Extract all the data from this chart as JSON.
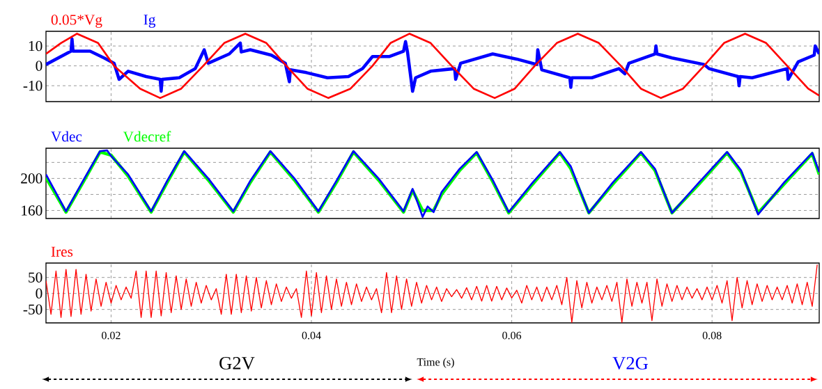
{
  "chart_data": [
    {
      "type": "line",
      "xlim": [
        0.0135,
        0.0907
      ],
      "xticks": [
        0.02,
        0.04,
        0.06,
        0.08
      ],
      "ylim": [
        -18,
        17.4
      ],
      "yticks": [
        -10,
        0,
        10
      ],
      "grid": true,
      "legend": "top left",
      "tick_labels": "y",
      "series": [
        {
          "name": "0.05*Vg",
          "color": "#ff0000",
          "x": [
            0.0135,
            0.015,
            0.0166,
            0.0187,
            0.0203,
            0.0229,
            0.0249,
            0.027,
            0.0292,
            0.0313,
            0.0334,
            0.0355,
            0.0375,
            0.0396,
            0.0417,
            0.0439,
            0.0461,
            0.0479,
            0.0498,
            0.0519,
            0.054,
            0.0562,
            0.0583,
            0.0603,
            0.0623,
            0.0645,
            0.0666,
            0.0687,
            0.0709,
            0.0729,
            0.0749,
            0.0771,
            0.0792,
            0.0812,
            0.0833,
            0.0854,
            0.0875,
            0.0896,
            0.0907
          ],
          "values": [
            6,
            11.5,
            16.2,
            11.5,
            0,
            -11.5,
            -16.2,
            -11.5,
            0,
            11.5,
            16.2,
            11.5,
            0,
            -11.5,
            -16.2,
            -11.5,
            0,
            11.5,
            16.2,
            11.5,
            0,
            -11.5,
            -16.2,
            -11.5,
            0,
            11.5,
            16.2,
            11.5,
            0,
            -11.5,
            -16.2,
            -11.5,
            0,
            11.5,
            16.2,
            11.5,
            0,
            -11.5,
            -15
          ]
        },
        {
          "name": "Ig",
          "color": "#0000ff",
          "x": [
            0.0135,
            0.016,
            0.0161,
            0.0162,
            0.0179,
            0.0193,
            0.0203,
            0.0208,
            0.0217,
            0.0235,
            0.0249,
            0.025,
            0.0251,
            0.0268,
            0.0284,
            0.0293,
            0.0297,
            0.0318,
            0.0329,
            0.033,
            0.0339,
            0.036,
            0.0374,
            0.0378,
            0.0379,
            0.0395,
            0.0416,
            0.0437,
            0.0451,
            0.0461,
            0.0478,
            0.0492,
            0.0494,
            0.0496,
            0.0501,
            0.0504,
            0.0519,
            0.0543,
            0.0544,
            0.0549,
            0.0581,
            0.0605,
            0.0625,
            0.0626,
            0.063,
            0.0658,
            0.0659,
            0.066,
            0.068,
            0.0707,
            0.0713,
            0.0717,
            0.0743,
            0.0744,
            0.0745,
            0.076,
            0.0792,
            0.0797,
            0.0826,
            0.0827,
            0.0828,
            0.084,
            0.0875,
            0.0876,
            0.0886,
            0.0902,
            0.0903,
            0.0907
          ],
          "values": [
            0.7,
            7.4,
            13.5,
            7.4,
            7.4,
            4,
            1.3,
            -6.8,
            -2.7,
            -5.4,
            -6.8,
            -12.8,
            -6.8,
            -6,
            -1.4,
            8.1,
            1.3,
            6,
            11.5,
            7,
            8.1,
            5.4,
            1.3,
            -8,
            -2,
            -3.4,
            -6,
            -5.4,
            -1.4,
            4.7,
            4.7,
            7.4,
            12.2,
            6.8,
            -12.8,
            -6,
            -2.7,
            -1.4,
            -6.8,
            1.3,
            6,
            3.4,
            0.7,
            8.1,
            -2,
            -6,
            -10.8,
            -6,
            -6,
            -1.4,
            -4,
            1.3,
            6,
            10,
            6,
            4,
            0.7,
            -1.4,
            -5.4,
            -10,
            -5.4,
            -6,
            -1.4,
            -6.8,
            2,
            5.4,
            10,
            6
          ]
        }
      ]
    },
    {
      "type": "line",
      "xlim": [
        0.0135,
        0.0907
      ],
      "xticks": [
        0.02,
        0.04,
        0.06,
        0.08
      ],
      "ylim": [
        150,
        237.7
      ],
      "yticks": [
        160,
        {
          "value": 180,
          "label": null
        },
        200,
        {
          "value": 220,
          "label": null
        }
      ],
      "grid": true,
      "legend": "top left",
      "tick_labels": "y",
      "series": [
        {
          "name": "Vdec",
          "color": "#0000ff",
          "x": [
            0.0135,
            0.0155,
            0.0172,
            0.0189,
            0.0196,
            0.02,
            0.0217,
            0.024,
            0.0256,
            0.0273,
            0.0297,
            0.0322,
            0.0339,
            0.0359,
            0.0383,
            0.0407,
            0.0425,
            0.0442,
            0.0467,
            0.0492,
            0.0501,
            0.0506,
            0.0511,
            0.0516,
            0.0522,
            0.053,
            0.0548,
            0.0565,
            0.0581,
            0.0597,
            0.0621,
            0.0648,
            0.0659,
            0.0677,
            0.0701,
            0.0729,
            0.0743,
            0.076,
            0.0787,
            0.0815,
            0.0829,
            0.0846,
            0.0872,
            0.09,
            0.0907
          ],
          "values": [
            205,
            159,
            197,
            234,
            235,
            228,
            205,
            159,
            197,
            234,
            200,
            159,
            197,
            234,
            200,
            159,
            197,
            234,
            200,
            159,
            187,
            170,
            152,
            165,
            158,
            183,
            212,
            233,
            198,
            158,
            195,
            233,
            215,
            157,
            195,
            233,
            212,
            157,
            195,
            233,
            210,
            155,
            195,
            232,
            208
          ]
        },
        {
          "name": "Vdecref",
          "color": "#00ff00",
          "x": [
            0.0135,
            0.0155,
            0.0172,
            0.0189,
            0.02,
            0.0217,
            0.024,
            0.0256,
            0.0273,
            0.0297,
            0.0322,
            0.0339,
            0.0359,
            0.0383,
            0.0407,
            0.0425,
            0.0442,
            0.0467,
            0.0492,
            0.0501,
            0.0511,
            0.0522,
            0.053,
            0.0548,
            0.0565,
            0.0581,
            0.0597,
            0.0621,
            0.0648,
            0.0659,
            0.0677,
            0.0701,
            0.0729,
            0.0743,
            0.076,
            0.0787,
            0.0815,
            0.0829,
            0.0846,
            0.0872,
            0.09,
            0.0907
          ],
          "values": [
            201,
            158,
            195,
            233,
            229,
            203,
            158,
            195,
            233,
            198,
            158,
            195,
            233,
            198,
            158,
            195,
            233,
            198,
            158,
            185,
            160,
            160,
            180,
            210,
            232,
            196,
            157,
            193,
            232,
            212,
            157,
            193,
            232,
            210,
            157,
            193,
            232,
            208,
            157,
            193,
            231,
            205
          ]
        }
      ]
    },
    {
      "type": "line",
      "xlim": [
        0.0135,
        0.0907
      ],
      "xticks": [
        0.02,
        0.04,
        0.06,
        0.08
      ],
      "ylim": [
        -92,
        95
      ],
      "yticks": [
        -50,
        0,
        50
      ],
      "grid": true,
      "legend": "top left",
      "xlabel": "Time (s)",
      "annotations": [
        "G2V",
        "V2G"
      ],
      "series": [
        {
          "name": "Ires",
          "color": "#ff0000",
          "x": [
            0.0135,
            0.014,
            0.0145,
            0.015,
            0.0155,
            0.016,
            0.0165,
            0.017,
            0.0175,
            0.018,
            0.0185,
            0.019,
            0.0195,
            0.02,
            0.0205,
            0.021,
            0.0215,
            0.022,
            0.0225,
            0.023,
            0.0235,
            0.024,
            0.0245,
            0.025,
            0.0255,
            0.026,
            0.0265,
            0.027,
            0.0275,
            0.028,
            0.0285,
            0.029,
            0.0295,
            0.03,
            0.0305,
            0.031,
            0.0315,
            0.032,
            0.0325,
            0.033,
            0.0335,
            0.034,
            0.0345,
            0.035,
            0.0355,
            0.036,
            0.0365,
            0.037,
            0.0375,
            0.038,
            0.0385,
            0.039,
            0.0395,
            0.04,
            0.0405,
            0.041,
            0.0415,
            0.042,
            0.0425,
            0.043,
            0.0435,
            0.044,
            0.0445,
            0.045,
            0.0455,
            0.046,
            0.0465,
            0.047,
            0.0475,
            0.048,
            0.0485,
            0.049,
            0.0495,
            0.05,
            0.0505,
            0.051,
            0.0515,
            0.052,
            0.0525,
            0.053,
            0.0535,
            0.054,
            0.0545,
            0.055,
            0.0555,
            0.056,
            0.0565,
            0.057,
            0.0575,
            0.058,
            0.0585,
            0.059,
            0.0595,
            0.06,
            0.0605,
            0.061,
            0.0615,
            0.062,
            0.0625,
            0.063,
            0.0635,
            0.064,
            0.0645,
            0.065,
            0.0655,
            0.066,
            0.0665,
            0.067,
            0.0675,
            0.068,
            0.0685,
            0.069,
            0.0695,
            0.07,
            0.0705,
            0.071,
            0.0715,
            0.072,
            0.0725,
            0.073,
            0.0735,
            0.074,
            0.0745,
            0.075,
            0.0755,
            0.076,
            0.0765,
            0.077,
            0.0775,
            0.078,
            0.0785,
            0.079,
            0.0795,
            0.08,
            0.0805,
            0.081,
            0.0815,
            0.082,
            0.0825,
            0.083,
            0.0835,
            0.084,
            0.0845,
            0.085,
            0.0855,
            0.086,
            0.0865,
            0.087,
            0.0875,
            0.088,
            0.0885,
            0.089,
            0.0895,
            0.09,
            0.0905
          ],
          "values": [
            40,
            -65,
            70,
            -75,
            75,
            -72,
            75,
            -65,
            60,
            -55,
            45,
            -40,
            35,
            -30,
            25,
            -20,
            20,
            -15,
            70,
            -75,
            70,
            -75,
            70,
            -70,
            65,
            -60,
            55,
            -50,
            45,
            -40,
            35,
            -30,
            25,
            -20,
            15,
            -65,
            60,
            -65,
            60,
            -60,
            55,
            -55,
            50,
            -45,
            40,
            -35,
            30,
            -25,
            20,
            -15,
            15,
            -75,
            70,
            -70,
            65,
            -60,
            55,
            -50,
            45,
            -40,
            35,
            -35,
            30,
            -25,
            20,
            -20,
            15,
            -60,
            65,
            -60,
            55,
            -50,
            45,
            -40,
            35,
            -30,
            25,
            -20,
            20,
            -25,
            15,
            -10,
            12,
            -15,
            18,
            -20,
            22,
            -24,
            25,
            -24,
            22,
            -20,
            17,
            -14,
            10,
            -30,
            25,
            -20,
            20,
            -25,
            20,
            -20,
            25,
            -35,
            50,
            -90,
            40,
            -45,
            35,
            -30,
            20,
            -20,
            25,
            -25,
            35,
            -90,
            45,
            -40,
            35,
            -30,
            35,
            -85,
            45,
            -40,
            30,
            -25,
            25,
            -20,
            20,
            -15,
            15,
            -20,
            20,
            -20,
            25,
            -30,
            40,
            -85,
            50,
            -45,
            40,
            -35,
            30,
            -25,
            25,
            -20,
            20,
            -20,
            25,
            -30,
            30,
            -35,
            35,
            -40,
            90
          ]
        }
      ]
    }
  ]
}
